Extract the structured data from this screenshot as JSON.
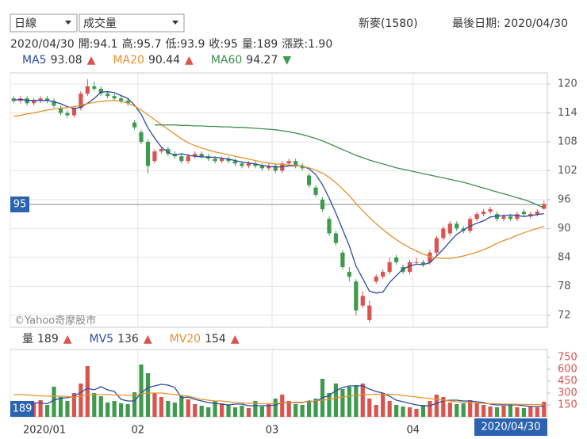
{
  "header": {
    "period": "日線",
    "indicator": "成交量",
    "stock": "新麥(1580)",
    "last_date": "最後日期: 2020/04/30",
    "quote": [
      "2020/04/30",
      "開:94.1",
      "高:95.7",
      "低:93.9",
      "收:95",
      "量:189",
      "漲跌:1.90"
    ]
  },
  "chart_data": [
    {
      "type": "candlestick",
      "watermark": "©Yahoo奇摩股市",
      "up_color": "#d9534f",
      "down_color": "#3f9a4f",
      "ylim": [
        69.5,
        122.3
      ],
      "yticks": [
        120,
        114,
        108,
        102,
        96,
        90,
        84,
        78,
        72
      ],
      "grid": true,
      "open": [
        117,
        116.5,
        117,
        116,
        116.5,
        117,
        116.5,
        115,
        114,
        113.5,
        115,
        118,
        119.5,
        119,
        118,
        117.5,
        117,
        116.5,
        112,
        110,
        108,
        104,
        106,
        106.5,
        105.5,
        105,
        104,
        105,
        105.5,
        105,
        104.5,
        104,
        104.5,
        104,
        103.5,
        103,
        103.5,
        103,
        102.5,
        103,
        102,
        103.5,
        104,
        103,
        101,
        98.5,
        96,
        92,
        89,
        85,
        81,
        79,
        74,
        71,
        79,
        80,
        81,
        84,
        82,
        81,
        83,
        83,
        83,
        85,
        88,
        89,
        91,
        90,
        89.5,
        92,
        93,
        93.5,
        93,
        92,
        92.5,
        92,
        93.5,
        92.5,
        93,
        94.1
      ],
      "high": [
        117.5,
        117.5,
        117.5,
        117,
        117.5,
        117.5,
        117,
        115.5,
        114.5,
        115.5,
        118.5,
        121,
        120.5,
        119.5,
        118.5,
        118,
        117.5,
        117,
        112.5,
        110.5,
        108.5,
        106.5,
        107,
        107,
        106,
        105.5,
        105.5,
        106,
        106,
        105.5,
        105,
        105,
        105,
        104.5,
        104,
        104,
        104,
        103.5,
        103.5,
        103.5,
        104,
        104.5,
        104.5,
        103.5,
        101.5,
        99,
        96.5,
        92.5,
        89.5,
        85.5,
        82,
        79.5,
        77,
        75,
        80.5,
        81.5,
        84,
        84.5,
        82.5,
        83.5,
        84,
        83.5,
        85.5,
        88.5,
        90.5,
        91.5,
        91.5,
        90.5,
        92.5,
        93.5,
        94,
        94.5,
        93.5,
        93,
        93,
        93.5,
        94,
        93.5,
        94,
        95.7
      ],
      "low": [
        116,
        116,
        115.5,
        115.5,
        116,
        116,
        115,
        113.5,
        113,
        113,
        114.5,
        117.5,
        118.5,
        117.5,
        117,
        116.5,
        116,
        115.5,
        110.5,
        107.5,
        101.5,
        103.5,
        105.5,
        105,
        104.5,
        103.5,
        103.5,
        104.5,
        104.5,
        104,
        103.5,
        103.5,
        103.5,
        103,
        102.5,
        102.5,
        102.5,
        102,
        102,
        101.5,
        101.5,
        103,
        102.5,
        102,
        98.5,
        96.5,
        93.5,
        88.5,
        86.5,
        81.5,
        79,
        72,
        73.5,
        70.5,
        78.5,
        79.5,
        80.5,
        82.5,
        80.5,
        80.5,
        82.5,
        82,
        82.5,
        84.5,
        87.5,
        88.5,
        89.5,
        89,
        89,
        91.5,
        92.5,
        93,
        91.5,
        91.5,
        91.5,
        91.5,
        92.5,
        92,
        92.5,
        93.9
      ],
      "close": [
        116.5,
        117,
        116,
        116.5,
        117,
        116.5,
        115.5,
        114,
        113.5,
        115,
        118,
        119.5,
        119,
        118,
        117.5,
        117,
        116.5,
        116,
        111,
        108,
        103,
        106,
        106.5,
        105.5,
        105,
        104,
        105,
        105.5,
        105,
        104.5,
        104,
        104.5,
        104,
        103.5,
        103,
        103.5,
        103,
        102.5,
        103,
        102,
        103.5,
        104,
        103,
        102.5,
        99,
        97,
        94,
        89,
        87,
        82,
        80,
        73,
        76,
        74,
        80,
        81,
        83,
        83,
        81,
        83,
        83,
        82.5,
        85,
        88,
        90,
        91,
        90,
        89.5,
        92,
        93,
        93.5,
        94,
        92,
        92.5,
        92,
        93,
        93,
        93,
        93.5,
        95
      ],
      "series": [
        {
          "name": "MA5",
          "color": "#2b4c9f",
          "arrow": "▲",
          "arrow_color": "#d9534f",
          "values": [
            116.6,
            116.8,
            116.6,
            116.6,
            116.6,
            116.6,
            116.3,
            115.9,
            115.3,
            114.9,
            115.2,
            116,
            117,
            118.3,
            118.4,
            118.2,
            117.6,
            117,
            115.6,
            113.7,
            110.9,
            108.8,
            106.9,
            105.8,
            105.2,
            105.5,
            105.2,
            105,
            104.9,
            104.8,
            104.8,
            104.6,
            104.4,
            104.1,
            103.8,
            103.6,
            103.4,
            103.1,
            102.9,
            102.8,
            102.8,
            103,
            103,
            103,
            102.4,
            101.2,
            99.1,
            96.3,
            93.2,
            89.8,
            86.4,
            82.2,
            79.6,
            77,
            76.6,
            76.8,
            78.8,
            80.2,
            81.6,
            82.2,
            82.6,
            82.5,
            82.9,
            84.3,
            85.7,
            87.3,
            88.8,
            89.7,
            90.5,
            91.1,
            91.6,
            92.4,
            92.6,
            92.7,
            92.8,
            92.7,
            92.5,
            92.7,
            92.9,
            93.08
          ]
        },
        {
          "name": "MA20",
          "color": "#e8912c",
          "arrow": "▲",
          "arrow_color": "#d9534f",
          "values": [
            113.3,
            113.5,
            113.8,
            114,
            114.3,
            114.6,
            114.8,
            115,
            115.1,
            115.3,
            115.6,
            115.9,
            116.2,
            116.4,
            116.5,
            116.6,
            116.4,
            116,
            115.4,
            114.6,
            113.6,
            112.6,
            111.6,
            110.6,
            109.6,
            108.6,
            107.8,
            107.2,
            106.7,
            106.3,
            105.9,
            105.6,
            105.3,
            105,
            104.7,
            104.4,
            104.1,
            103.8,
            103.6,
            103.4,
            103.3,
            103.2,
            103.1,
            102.9,
            102.6,
            102.1,
            101.5,
            100.6,
            99.5,
            98.2,
            96.8,
            95.2,
            93.7,
            92.3,
            91,
            89.8,
            88.7,
            87.7,
            86.8,
            86,
            85.3,
            84.7,
            84.2,
            83.9,
            83.8,
            83.8,
            84,
            84.3,
            84.7,
            85.1,
            85.6,
            86.2,
            86.9,
            87.5,
            88,
            88.6,
            89.1,
            89.6,
            90,
            90.44
          ]
        },
        {
          "name": "MA60",
          "color": "#3f8d4f",
          "arrow": "▼",
          "arrow_color": "#3f9a4f",
          "values": [
            null,
            null,
            null,
            null,
            null,
            null,
            null,
            null,
            null,
            null,
            null,
            null,
            null,
            null,
            null,
            null,
            null,
            null,
            null,
            null,
            null,
            111.5,
            111.5,
            111.5,
            111.5,
            111.4,
            111.4,
            111.3,
            111.3,
            111.2,
            111.2,
            111.1,
            111.1,
            111,
            111,
            110.9,
            110.8,
            110.7,
            110.6,
            110.5,
            110.3,
            110.1,
            109.8,
            109.5,
            109.1,
            108.7,
            108.2,
            107.6,
            107,
            106.4,
            105.8,
            105.2,
            104.7,
            104.2,
            103.8,
            103.4,
            103,
            102.6,
            102.3,
            102,
            101.7,
            101.4,
            101.1,
            100.8,
            100.5,
            100.2,
            99.9,
            99.6,
            99.2,
            98.8,
            98.4,
            98,
            97.6,
            97.2,
            96.8,
            96.4,
            96,
            95.5,
            94.9,
            94.27
          ]
        }
      ]
    },
    {
      "type": "bar",
      "name": "量",
      "arrow": "▲",
      "arrow_color": "#d9534f",
      "ylim": [
        0,
        850
      ],
      "yticks": [
        750,
        600,
        450,
        300,
        150
      ],
      "grid": false,
      "categories": [
        "2020/01",
        null,
        null,
        null,
        null,
        null,
        null,
        null,
        null,
        null,
        null,
        null,
        null,
        null,
        null,
        null,
        null,
        null,
        null,
        "02",
        null,
        null,
        null,
        null,
        null,
        null,
        null,
        null,
        null,
        null,
        null,
        null,
        null,
        null,
        null,
        null,
        null,
        null,
        null,
        "03",
        null,
        null,
        null,
        null,
        null,
        null,
        null,
        null,
        null,
        null,
        null,
        null,
        null,
        null,
        null,
        null,
        null,
        null,
        null,
        null,
        "04",
        null,
        null,
        null,
        null,
        null,
        null,
        null,
        null,
        null,
        null,
        null,
        null,
        null,
        null,
        null,
        null,
        null,
        null,
        "2020/04/30"
      ],
      "values": [
        200,
        150,
        130,
        180,
        210,
        150,
        380,
        250,
        200,
        300,
        420,
        640,
        300,
        260,
        180,
        200,
        170,
        160,
        310,
        660,
        550,
        300,
        250,
        200,
        180,
        270,
        220,
        160,
        140,
        120,
        200,
        170,
        150,
        120,
        140,
        110,
        200,
        130,
        160,
        230,
        280,
        200,
        160,
        150,
        200,
        230,
        480,
        300,
        420,
        350,
        380,
        400,
        420,
        230,
        150,
        300,
        200,
        150,
        130,
        120,
        100,
        150,
        200,
        280,
        250,
        180,
        160,
        170,
        210,
        180,
        150,
        130,
        120,
        140,
        160,
        120,
        110,
        130,
        120,
        189
      ],
      "series": [
        {
          "name": "MV5",
          "color": "#2b4c9f",
          "arrow": "▲",
          "arrow_color": "#d9534f",
          "values": [
            190,
            180,
            170,
            175,
            175,
            165,
            210,
            235,
            240,
            260,
            310,
            360,
            340,
            380,
            340,
            320,
            220,
            200,
            200,
            300,
            370,
            390,
            410,
            400,
            370,
            240,
            250,
            220,
            200,
            180,
            170,
            160,
            150,
            160,
            160,
            140,
            140,
            140,
            140,
            150,
            180,
            180,
            180,
            180,
            200,
            190,
            240,
            270,
            330,
            370,
            390,
            390,
            390,
            350,
            320,
            300,
            260,
            210,
            190,
            170,
            150,
            140,
            140,
            170,
            200,
            210,
            210,
            200,
            200,
            190,
            180,
            160,
            150,
            150,
            150,
            150,
            140,
            130,
            130,
            136
          ]
        },
        {
          "name": "MV20",
          "color": "#e8912c",
          "arrow": "▲",
          "arrow_color": "#d9534f",
          "values": [
            280,
            280,
            275,
            270,
            265,
            260,
            260,
            260,
            255,
            250,
            260,
            280,
            280,
            280,
            280,
            275,
            275,
            270,
            270,
            290,
            300,
            300,
            300,
            290,
            280,
            270,
            260,
            240,
            220,
            210,
            200,
            200,
            190,
            180,
            175,
            170,
            170,
            165,
            165,
            170,
            175,
            180,
            185,
            185,
            190,
            200,
            210,
            220,
            240,
            250,
            260,
            270,
            280,
            280,
            285,
            285,
            285,
            280,
            270,
            260,
            250,
            240,
            230,
            220,
            210,
            200,
            190,
            185,
            180,
            175,
            170,
            165,
            165,
            160,
            160,
            158,
            156,
            155,
            155,
            154
          ]
        }
      ]
    }
  ]
}
